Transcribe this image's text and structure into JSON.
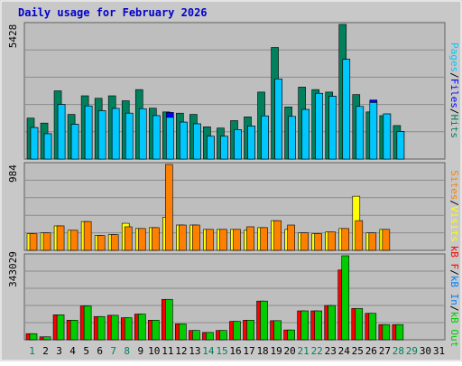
{
  "title": "Daily usage for February 2026",
  "colors": {
    "frame": "#c8c8c8",
    "panel": "#bebebe",
    "grid": "#8c8c8c",
    "title": "#0000cc",
    "hits": "#00805c",
    "files": "#0000ff",
    "pages": "#00c8ff",
    "visits": "#ffff00",
    "sites": "#ff8000",
    "kb_in": "#0080ff",
    "kb_out": "#00cc00",
    "kb_f": "#ff0000",
    "weekday": "#000000",
    "weekend": "#00805c"
  },
  "panels": {
    "usage": {
      "max_label": "5428",
      "legend": [
        {
          "text": "Pages",
          "color": "#00c8ff"
        },
        {
          "text": "/",
          "color": "#000000"
        },
        {
          "text": "Files",
          "color": "#0000ff"
        },
        {
          "text": "/",
          "color": "#000000"
        },
        {
          "text": "Hits",
          "color": "#00805c"
        }
      ]
    },
    "visits": {
      "max_label": "984",
      "legend": [
        {
          "text": "Sites",
          "color": "#ff8000"
        },
        {
          "text": "/",
          "color": "#000000"
        },
        {
          "text": "Visits",
          "color": "#ffff00"
        }
      ]
    },
    "kbytes": {
      "max_label": "343029",
      "legend": [
        {
          "text": "kB F",
          "color": "#ff0000"
        },
        {
          "text": "/",
          "color": "#000000"
        },
        {
          "text": "kB In",
          "color": "#0080ff"
        },
        {
          "text": "/",
          "color": "#000000"
        },
        {
          "text": "kB Out",
          "color": "#00cc00"
        }
      ]
    }
  },
  "chart_data": {
    "type": "bar",
    "title": "Daily usage for February 2026",
    "x": [
      "1",
      "2",
      "3",
      "4",
      "5",
      "6",
      "7",
      "8",
      "9",
      "10",
      "11",
      "12",
      "13",
      "14",
      "15",
      "16",
      "17",
      "18",
      "19",
      "20",
      "21",
      "22",
      "23",
      "24",
      "25",
      "26",
      "27",
      "28",
      "29",
      "30",
      "31"
    ],
    "weekend_days": [
      "1",
      "7",
      "8",
      "14",
      "15",
      "21",
      "22",
      "28",
      "29"
    ],
    "series": [
      {
        "name": "Hits",
        "panel": "usage",
        "values": [
          1650,
          1450,
          2750,
          1800,
          2550,
          2450,
          2550,
          2350,
          2800,
          2050,
          1900,
          1850,
          1800,
          1300,
          1250,
          1550,
          1700,
          2700,
          4500,
          2100,
          2900,
          2800,
          2700,
          5428,
          2600,
          1900,
          1750,
          1350,
          null,
          null,
          null
        ]
      },
      {
        "name": "Files",
        "panel": "usage",
        "values": [
          1270,
          1020,
          2200,
          1400,
          2140,
          1950,
          2040,
          1850,
          2030,
          1750,
          1880,
          1490,
          1420,
          920,
          920,
          1190,
          1330,
          1740,
          3230,
          1720,
          2000,
          2650,
          2530,
          4020,
          2120,
          2380,
          1820,
          1110,
          null,
          null,
          null
        ]
      },
      {
        "name": "Pages",
        "panel": "usage",
        "values": [
          1270,
          1020,
          2200,
          1400,
          2140,
          1950,
          2040,
          1850,
          2030,
          1750,
          1680,
          1490,
          1420,
          920,
          920,
          1190,
          1330,
          1740,
          3230,
          1720,
          2000,
          2650,
          2530,
          4020,
          2120,
          2280,
          1820,
          1110,
          null,
          null,
          null
        ]
      },
      {
        "name": "Visits",
        "panel": "visits",
        "values": [
          190,
          200,
          280,
          230,
          330,
          170,
          180,
          310,
          250,
          260,
          380,
          290,
          290,
          240,
          240,
          240,
          230,
          260,
          340,
          240,
          200,
          190,
          210,
          250,
          620,
          200,
          240,
          null,
          null,
          null,
          null
        ]
      },
      {
        "name": "Sites",
        "panel": "visits",
        "values": [
          190,
          200,
          280,
          230,
          330,
          170,
          180,
          270,
          250,
          260,
          984,
          290,
          290,
          240,
          240,
          240,
          270,
          260,
          340,
          290,
          200,
          190,
          210,
          250,
          340,
          200,
          240,
          null,
          null,
          null,
          null
        ]
      },
      {
        "name": "kB F",
        "panel": "kbytes",
        "values": [
          25000,
          12000,
          102000,
          80000,
          138000,
          95000,
          100000,
          90000,
          105000,
          80000,
          165000,
          65000,
          38000,
          30000,
          38000,
          75000,
          80000,
          158000,
          78000,
          40000,
          118000,
          118000,
          140000,
          285000,
          128000,
          108000,
          62000,
          62000,
          null,
          null,
          null
        ]
      },
      {
        "name": "kB In",
        "panel": "kbytes",
        "values": [
          0,
          0,
          0,
          0,
          0,
          0,
          0,
          0,
          0,
          0,
          0,
          0,
          0,
          0,
          0,
          0,
          0,
          0,
          0,
          0,
          0,
          0,
          0,
          0,
          0,
          0,
          0,
          0,
          null,
          null,
          null
        ]
      },
      {
        "name": "kB Out",
        "panel": "kbytes",
        "values": [
          25000,
          12000,
          102000,
          80000,
          138000,
          95000,
          100000,
          90000,
          105000,
          80000,
          165000,
          65000,
          38000,
          30000,
          38000,
          75000,
          80000,
          158000,
          78000,
          40000,
          118000,
          118000,
          140000,
          343029,
          128000,
          108000,
          62000,
          62000,
          null,
          null,
          null
        ]
      }
    ],
    "ylim": {
      "usage": [
        0,
        5428
      ],
      "visits": [
        0,
        984
      ],
      "kbytes": [
        0,
        343029
      ]
    },
    "grid": true,
    "legend_placement": "right"
  }
}
